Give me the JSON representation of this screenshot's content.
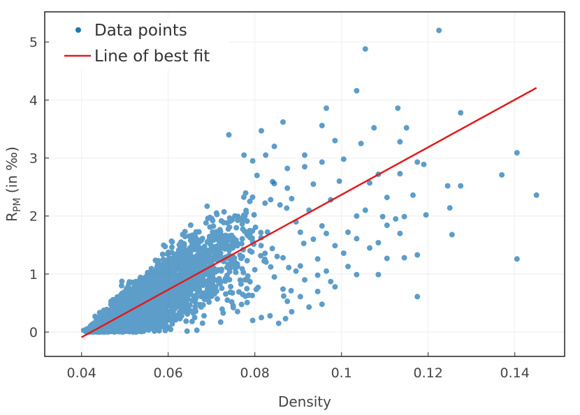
{
  "chart_data": {
    "type": "scatter",
    "xlabel": "Density",
    "ylabel": {
      "main": "R",
      "sub": "PM",
      "rest": " (in ‰)"
    },
    "xlim": [
      0.0315,
      0.1515
    ],
    "ylim": [
      -0.42,
      5.52
    ],
    "xticks": [
      0.04,
      0.06,
      0.08,
      0.1,
      0.12,
      0.14
    ],
    "xtick_labels": [
      "0.04",
      "0.06",
      "0.08",
      "0.1",
      "0.12",
      "0.14"
    ],
    "yticks": [
      0,
      1,
      2,
      3,
      4,
      5
    ],
    "ytick_labels": [
      "0",
      "1",
      "2",
      "3",
      "4",
      "5"
    ],
    "grid": true,
    "legend_position": "top-left",
    "series": [
      {
        "name": "Data points",
        "kind": "scatter",
        "color": "#1f77b4",
        "points": [
          [
            0.1225,
            5.2
          ],
          [
            0.1055,
            4.88
          ],
          [
            0.1035,
            4.16
          ],
          [
            0.0965,
            3.86
          ],
          [
            0.113,
            3.86
          ],
          [
            0.1275,
            3.78
          ],
          [
            0.1075,
            3.52
          ],
          [
            0.115,
            3.52
          ],
          [
            0.0955,
            3.56
          ],
          [
            0.0865,
            3.62
          ],
          [
            0.0815,
            3.47
          ],
          [
            0.074,
            3.4
          ],
          [
            0.0985,
            3.3
          ],
          [
            0.1045,
            3.25
          ],
          [
            0.1135,
            3.28
          ],
          [
            0.1405,
            3.09
          ],
          [
            0.1175,
            2.93
          ],
          [
            0.119,
            2.89
          ],
          [
            0.1005,
            2.98
          ],
          [
            0.1085,
            2.72
          ],
          [
            0.1065,
            2.57
          ],
          [
            0.1135,
            2.73
          ],
          [
            0.137,
            2.71
          ],
          [
            0.1245,
            2.52
          ],
          [
            0.1275,
            2.52
          ],
          [
            0.1165,
            2.36
          ],
          [
            0.145,
            2.36
          ],
          [
            0.1105,
            2.32
          ],
          [
            0.125,
            2.14
          ],
          [
            0.1195,
            2.02
          ],
          [
            0.1145,
            1.99
          ],
          [
            0.1125,
            1.95
          ],
          [
            0.1095,
            1.99
          ],
          [
            0.1035,
            2.0
          ],
          [
            0.1105,
            1.84
          ],
          [
            0.1135,
            1.7
          ],
          [
            0.1255,
            1.68
          ],
          [
            0.1035,
            1.61
          ],
          [
            0.1085,
            1.54
          ],
          [
            0.0985,
            1.49
          ],
          [
            0.1005,
            1.36
          ],
          [
            0.1175,
            1.33
          ],
          [
            0.1145,
            1.28
          ],
          [
            0.1105,
            1.27
          ],
          [
            0.1405,
            1.26
          ],
          [
            0.0945,
            1.26
          ],
          [
            0.1015,
            1.13
          ],
          [
            0.0905,
            1.14
          ],
          [
            0.1085,
            0.99
          ],
          [
            0.1035,
            0.99
          ],
          [
            0.0975,
            0.87
          ],
          [
            0.0985,
            0.78
          ],
          [
            0.0945,
            0.7
          ],
          [
            0.0905,
            0.61
          ],
          [
            0.1175,
            0.61
          ],
          [
            0.0955,
            0.48
          ],
          [
            0.0875,
            0.53
          ],
          [
            0.0925,
            0.43
          ],
          [
            0.0885,
            0.35
          ],
          [
            0.0835,
            0.28
          ],
          [
            0.0815,
            0.25
          ],
          [
            0.0855,
            0.15
          ],
          [
            0.0795,
            0.2
          ],
          [
            0.0805,
            2.7
          ],
          [
            0.0845,
            2.56
          ],
          [
            0.0875,
            2.48
          ],
          [
            0.0885,
            2.3
          ],
          [
            0.0915,
            2.85
          ],
          [
            0.0935,
            2.55
          ],
          [
            0.0925,
            2.1
          ],
          [
            0.0895,
            1.9
          ],
          [
            0.0905,
            1.72
          ],
          [
            0.0935,
            1.6
          ],
          [
            0.0955,
            1.83
          ],
          [
            0.0975,
            2.28
          ],
          [
            0.0995,
            2.6
          ],
          [
            0.0845,
            3.2
          ],
          [
            0.0825,
            3.05
          ],
          [
            0.0795,
            2.95
          ],
          [
            0.0775,
            3.05
          ],
          [
            0.0865,
            1.28
          ],
          [
            0.0895,
            1.05
          ],
          [
            0.0915,
            0.9
          ],
          [
            0.0865,
            0.74
          ],
          [
            0.0845,
            0.95
          ],
          [
            0.0965,
            1.05
          ],
          [
            0.0945,
            0.98
          ],
          [
            0.1015,
            1.72
          ],
          [
            0.1055,
            2.1
          ],
          [
            0.1065,
            1.45
          ],
          [
            0.0915,
            3.05
          ],
          [
            0.0955,
            2.93
          ],
          [
            0.0875,
            2.82
          ],
          [
            0.0965,
            1.7
          ]
        ]
      },
      {
        "name": "Line of best fit",
        "kind": "line",
        "color": "#e31a1c",
        "points": [
          [
            0.04,
            -0.09
          ],
          [
            0.145,
            4.21
          ]
        ]
      }
    ]
  }
}
